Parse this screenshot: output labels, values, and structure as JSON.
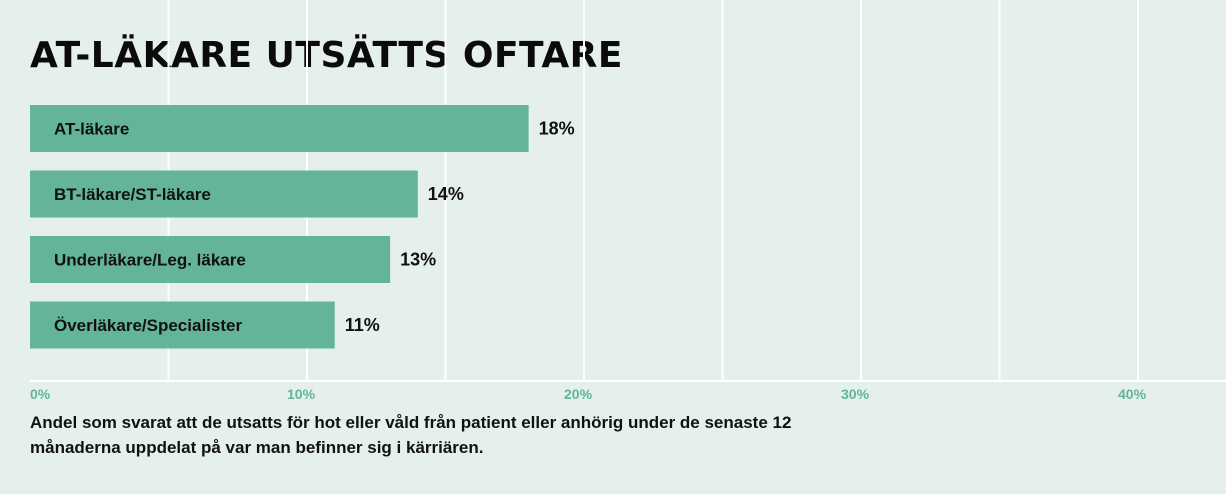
{
  "colors": {
    "background": "#e5efeb",
    "bar": "#63b49a",
    "grid": "#ffffff",
    "tick_text": "#63b49a",
    "text": "#111111"
  },
  "chart_data": {
    "type": "bar",
    "orientation": "horizontal",
    "title": "AT-LÄKARE UTSÄTTS OFTARE",
    "caption": "Andel som svarat att de utsatts för hot eller våld från patient eller anhörig under de senaste 12 månaderna uppdelat på var man befinner sig i kärriären.",
    "categories": [
      "AT-läkare",
      "BT-läkare/ST-läkare",
      "Underläkare/Leg. läkare",
      "Överläkare/Specialister"
    ],
    "values": [
      18,
      14,
      13,
      11
    ],
    "value_labels": [
      "18%",
      "14%",
      "13%",
      "11%"
    ],
    "xlim": [
      0,
      43
    ],
    "x_ticks": [
      0,
      10,
      20,
      30,
      40
    ],
    "x_tick_labels": [
      "0%",
      "10%",
      "20%",
      "30%",
      "40%"
    ],
    "grid": true,
    "legend": "none"
  }
}
